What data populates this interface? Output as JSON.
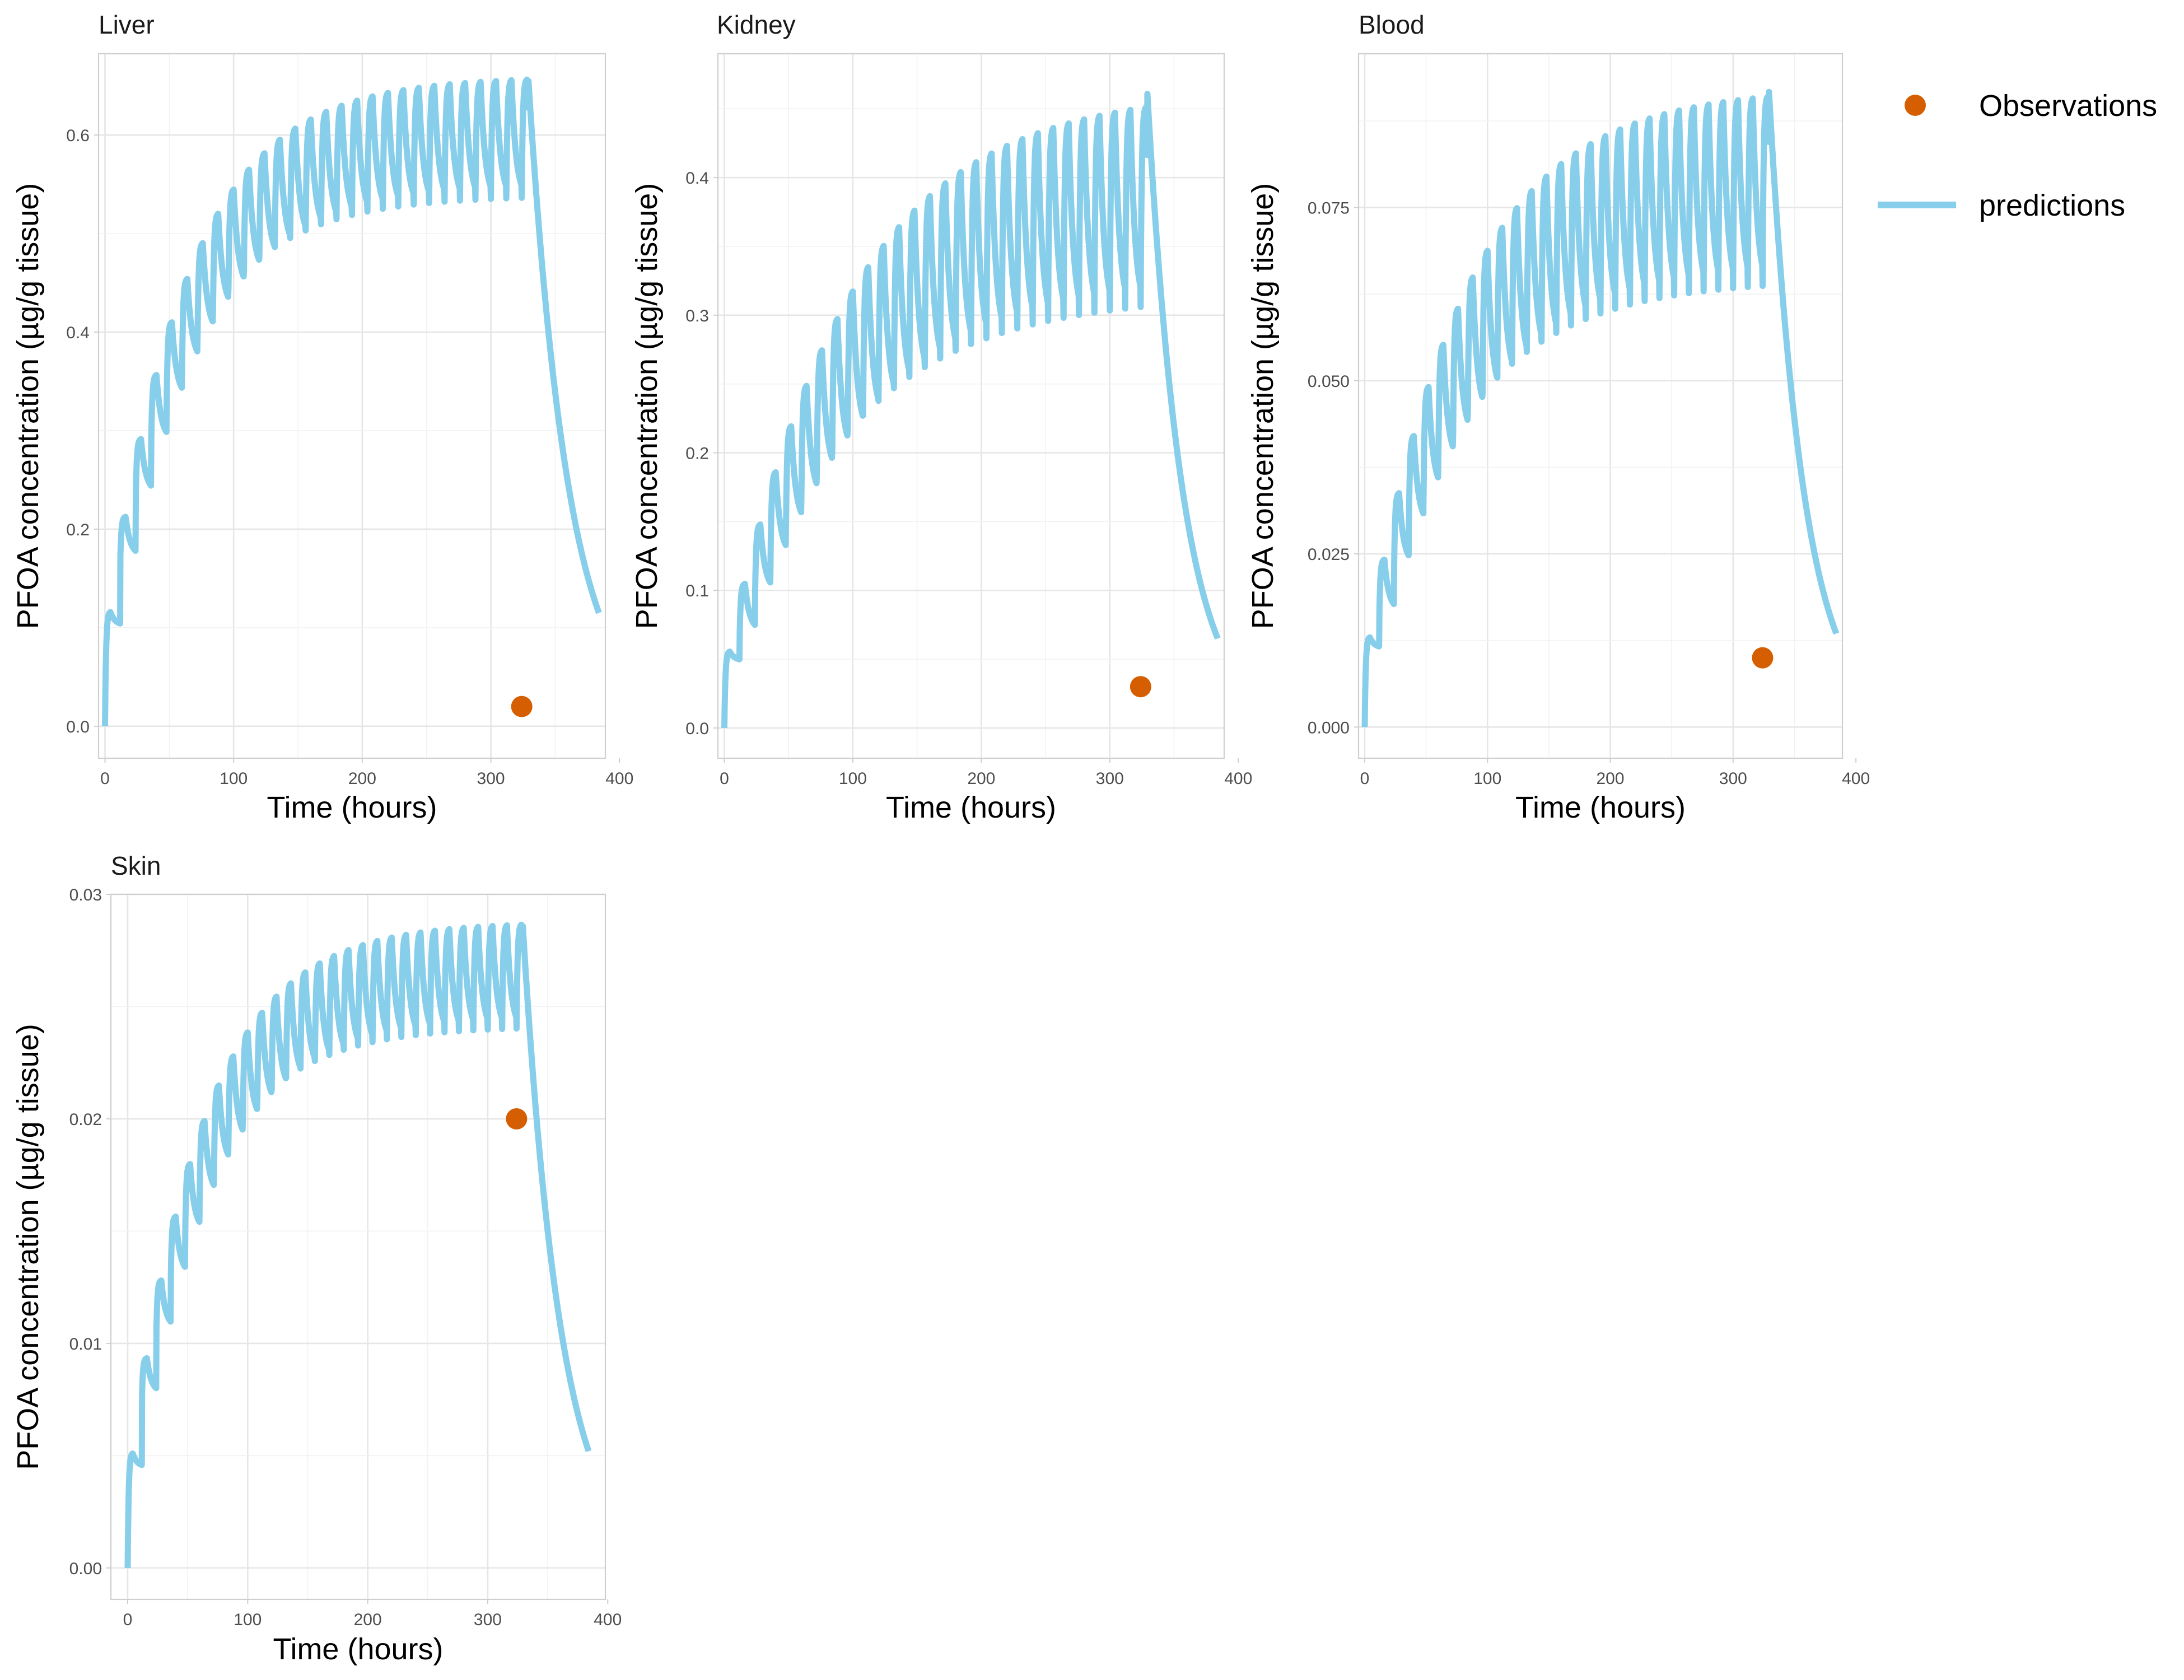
{
  "legend": {
    "placement": "right",
    "entries": [
      {
        "label": "Observations",
        "kind": "point",
        "color": "#D55E00"
      },
      {
        "label": "predictions",
        "kind": "line",
        "color": "#87CEEB"
      }
    ]
  },
  "chart_data": [
    {
      "type": "line",
      "title": "Liver",
      "xlabel": "Time (hours)",
      "ylabel": "PFOA concentration (µg/g tissue)",
      "xlim": [
        -5,
        389
      ],
      "ylim": [
        -0.0325,
        0.6825
      ],
      "x_ticks": [
        0,
        100,
        200,
        300,
        400
      ],
      "x_tick_labels": [
        "0",
        "100",
        "200",
        "300",
        "400"
      ],
      "y_ticks": [
        0,
        0.2,
        0.4,
        0.6
      ],
      "y_tick_labels": [
        "0.0",
        "0.2",
        "0.4",
        "0.6"
      ],
      "grid": true,
      "predictions": {
        "dose_interval": 12,
        "n_doses": 28,
        "end_dose_time": 324,
        "t_end": 384,
        "start": 0,
        "first_peak": 0.19,
        "steady_peak": 0.66,
        "steady_trough": 0.525,
        "end_value": 0.115
      },
      "observations": [
        {
          "x": 324,
          "y": 0.02
        }
      ]
    },
    {
      "type": "line",
      "title": "Kidney",
      "xlabel": "Time (hours)",
      "ylabel": "PFOA concentration (µg/g tissue)",
      "xlim": [
        -5,
        389
      ],
      "ylim": [
        -0.022,
        0.49
      ],
      "x_ticks": [
        0,
        100,
        200,
        300,
        400
      ],
      "x_tick_labels": [
        "0",
        "100",
        "200",
        "300",
        "400"
      ],
      "y_ticks": [
        0,
        0.1,
        0.2,
        0.3,
        0.4
      ],
      "y_tick_labels": [
        "0.0",
        "0.1",
        "0.2",
        "0.3",
        "0.4"
      ],
      "grid": true,
      "predictions": {
        "dose_interval": 12,
        "n_doses": 28,
        "end_dose_time": 324,
        "t_end": 384,
        "start": 0,
        "first_peak": 0.205,
        "steady_peak": 0.465,
        "steady_trough": 0.298,
        "end_value": 0.065
      },
      "observations": [
        {
          "x": 324,
          "y": 0.03
        }
      ]
    },
    {
      "type": "line",
      "title": "Blood",
      "xlabel": "Time (hours)",
      "ylabel": "PFOA concentration (µg/g tissue)",
      "xlim": [
        -5,
        389
      ],
      "ylim": [
        -0.0045,
        0.0972
      ],
      "x_ticks": [
        0,
        100,
        200,
        300,
        400
      ],
      "x_tick_labels": [
        "0",
        "100",
        "200",
        "300",
        "400"
      ],
      "y_ticks": [
        0,
        0.025,
        0.05,
        0.075
      ],
      "y_tick_labels": [
        "0.000",
        "0.025",
        "0.050",
        "0.075"
      ],
      "grid": true,
      "predictions": {
        "dose_interval": 12,
        "n_doses": 28,
        "end_dose_time": 324,
        "t_end": 384,
        "start": 0,
        "first_peak": 0.035,
        "steady_peak": 0.0925,
        "steady_trough": 0.0615,
        "end_value": 0.0135
      },
      "observations": [
        {
          "x": 324,
          "y": 0.01
        }
      ]
    },
    {
      "type": "line",
      "title": "Skin",
      "xlabel": "Time (hours)",
      "ylabel": "PFOA concentration (µg/g tissue)",
      "xlim": [
        -14,
        398
      ],
      "ylim": [
        -0.0014,
        0.03
      ],
      "x_ticks": [
        0,
        100,
        200,
        300,
        400
      ],
      "x_tick_labels": [
        "0",
        "100",
        "200",
        "300",
        "400"
      ],
      "y_ticks": [
        0,
        0.01,
        0.02,
        0.03
      ],
      "y_tick_labels": [
        "0.00",
        "0.01",
        "0.02",
        "0.03"
      ],
      "grid": true,
      "predictions": {
        "dose_interval": 12,
        "n_doses": 28,
        "end_dose_time": 324,
        "t_end": 384,
        "start": 0,
        "first_peak": 0.0082,
        "steady_peak": 0.0288,
        "steady_trough": 0.0236,
        "end_value": 0.0052
      },
      "observations": [
        {
          "x": 324,
          "y": 0.02
        }
      ]
    }
  ]
}
